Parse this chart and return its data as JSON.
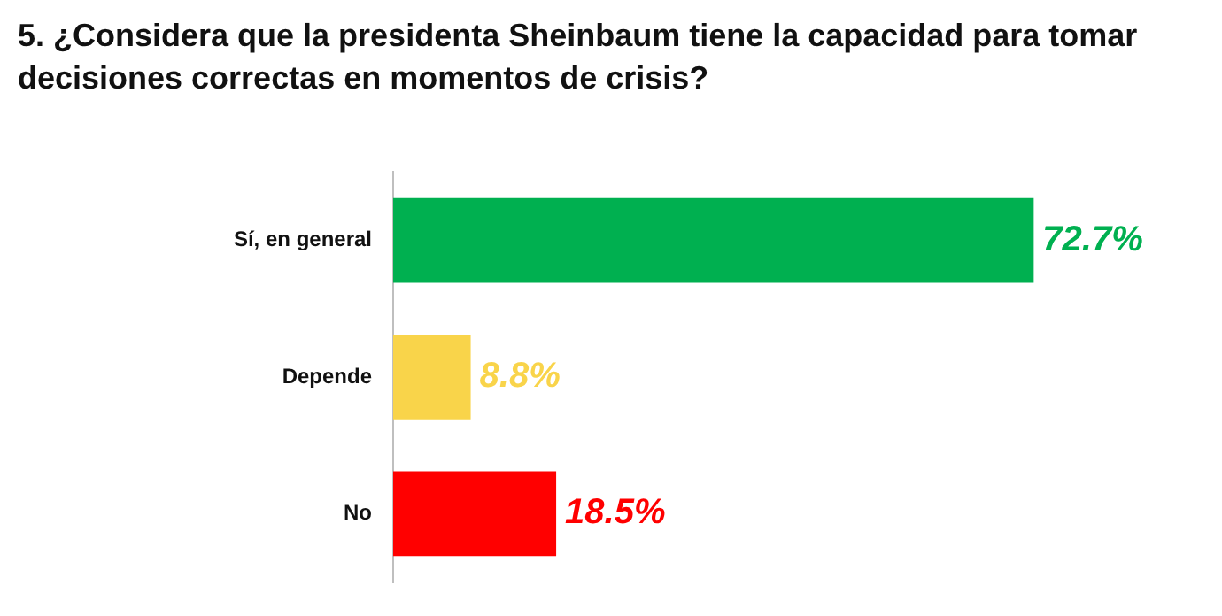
{
  "chart_data": {
    "type": "bar",
    "orientation": "horizontal",
    "title": "5. ¿Considera que la presidenta Sheinbaum tiene la capacidad para tomar decisiones correctas en momentos de crisis?",
    "categories": [
      "Sí, en general",
      "Depende",
      "No"
    ],
    "values": [
      72.7,
      8.8,
      18.5
    ],
    "colors": [
      "#00b050",
      "#f9d44a",
      "#ff0000"
    ],
    "value_labels": [
      "72.7%",
      "8.8%",
      "18.5%"
    ],
    "legend": false
  }
}
